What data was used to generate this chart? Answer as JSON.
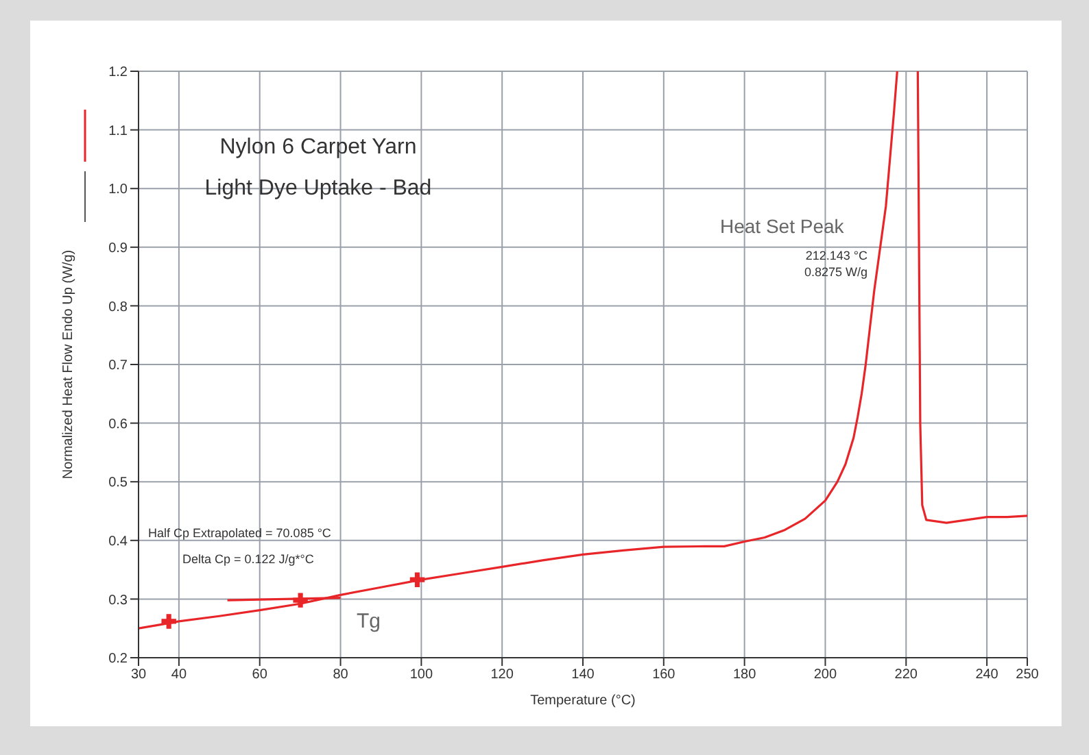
{
  "chart_data": {
    "type": "line",
    "title": "Nylon 6 Carpet Yarn\nLight Dye Uptake - Bad",
    "xlabel": "Temperature (°C)",
    "ylabel": "Normalized Heat Flow Endo Up (W/g)",
    "xlim": [
      30,
      250
    ],
    "xticks": [
      30,
      40,
      60,
      80,
      100,
      120,
      140,
      160,
      180,
      200,
      220,
      240,
      250
    ],
    "ylim": [
      0.2,
      1.2
    ],
    "yticks": [
      0.2,
      0.3,
      0.4,
      0.5,
      0.6,
      0.7,
      0.8,
      0.9,
      {
        "value": 1,
        "label": "1.0"
      },
      1.1,
      1.2
    ],
    "grid": true,
    "line_style": "solid",
    "series": [
      {
        "color": "#e8262a",
        "x": [
          30,
          35,
          40,
          50,
          60,
          70,
          80,
          90,
          100,
          110,
          120,
          130,
          140,
          150,
          160,
          170,
          175,
          180,
          185,
          190,
          195,
          200,
          203,
          205,
          207,
          208,
          209,
          210,
          211,
          212.143,
          213,
          214,
          215,
          216,
          217,
          217.8,
          220,
          222.9,
          223.2,
          223.5,
          224,
          225,
          230,
          235,
          240,
          245,
          250
        ],
        "values": [
          0.25,
          0.256,
          0.262,
          0.271,
          0.281,
          0.292,
          0.307,
          0.32,
          0.333,
          0.344,
          0.355,
          0.366,
          0.376,
          0.383,
          0.389,
          0.39,
          0.39,
          0.398,
          0.405,
          0.418,
          0.437,
          0.468,
          0.5,
          0.53,
          0.575,
          0.61,
          0.65,
          0.7,
          0.76,
          0.8275,
          0.87,
          0.92,
          0.97,
          1.05,
          1.13,
          1.2,
          null,
          1.2,
          0.9,
          0.6,
          0.46,
          0.435,
          0.43,
          0.435,
          0.44,
          0.44,
          0.442
        ]
      },
      {
        "color": "#e8262a",
        "x": [
          52,
          80
        ],
        "values": [
          0.298,
          0.302
        ]
      },
      {
        "type": "scatter",
        "color": "#e8262a",
        "marker": "cross",
        "x": [
          37.5,
          70.085,
          99
        ],
        "values": [
          0.262,
          0.298,
          0.333
        ]
      }
    ],
    "annotations": [
      {
        "text": "212.143 °C\n0.8275 W/g",
        "x": 212.143,
        "y": 0.8275
      },
      "Heat Set Peak",
      "Half Cp Extrapolated = 70.085 °C",
      "Delta Cp = 0.122 J/g*°C",
      "Tg"
    ]
  }
}
